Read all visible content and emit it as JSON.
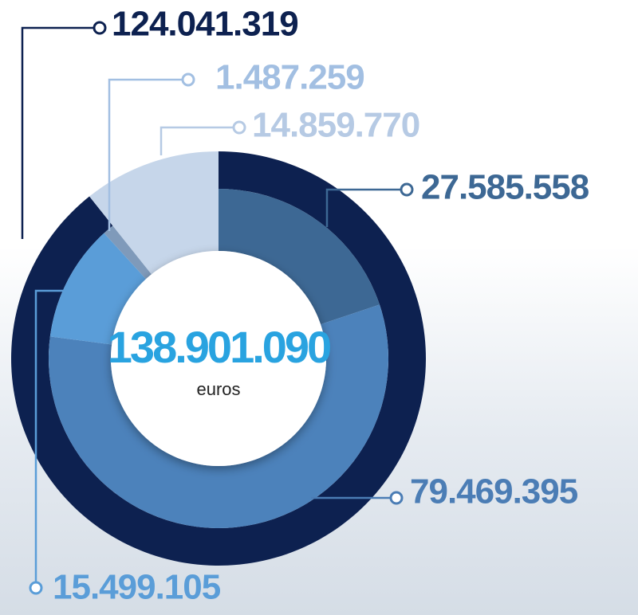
{
  "chart_data": {
    "type": "donut",
    "center_label": "138.901.090",
    "center_unit": "euros",
    "series": [
      {
        "ring": "outer",
        "values": [
          124041319,
          14859770
        ],
        "value_labels": [
          "124.041.319",
          "14.859.770"
        ],
        "colors": [
          "#0d2150",
          "#c6d6ea"
        ],
        "label_colors": [
          "#0d2150",
          "#b6cae4"
        ]
      },
      {
        "ring": "inner",
        "values": [
          27585558,
          79469395,
          15499105,
          1487259
        ],
        "value_labels": [
          "27.585.558",
          "79.469.395",
          "15.499.105",
          "1.487.259"
        ],
        "colors": [
          "#3d6894",
          "#4c82bb",
          "#5a9dd8",
          "#7f9aba"
        ],
        "label_colors": [
          "#3d6894",
          "#4b7db5",
          "#5a9dd8",
          "#a2bfe2"
        ]
      }
    ]
  }
}
